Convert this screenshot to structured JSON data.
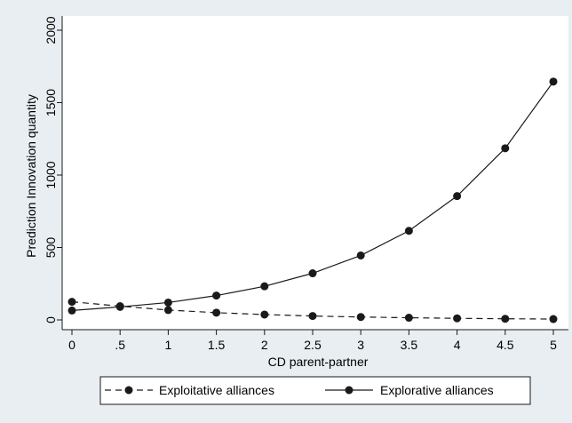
{
  "chart_data": {
    "type": "line",
    "xlabel": "CD parent-partner",
    "ylabel": "Prediction Innovation quantity",
    "x": [
      0,
      0.5,
      1,
      1.5,
      2,
      2.5,
      3,
      3.5,
      4,
      4.5,
      5
    ],
    "x_tick_labels": [
      "0",
      ".5",
      "1",
      "1.5",
      "2",
      "2.5",
      "3",
      "3.5",
      "4",
      "4.5",
      "5"
    ],
    "xlim": [
      0,
      5
    ],
    "y_ticks": [
      0,
      500,
      1000,
      1500,
      2000
    ],
    "y_tick_labels": [
      "0",
      "500",
      "1000",
      "1500",
      "2000"
    ],
    "ylim": [
      0,
      2000
    ],
    "grid": false,
    "legend_position": "bottom",
    "series": [
      {
        "name": "Exploitative alliances",
        "line_style": "dashed",
        "marker": "filled-circle",
        "color": "#1a1a1a",
        "values": [
          125,
          95,
          68,
          50,
          37,
          27,
          20,
          15,
          11,
          8,
          6
        ]
      },
      {
        "name": "Explorative alliances",
        "line_style": "solid",
        "marker": "filled-circle",
        "color": "#1a1a1a",
        "values": [
          65,
          90,
          120,
          168,
          232,
          322,
          445,
          615,
          855,
          1185,
          1645
        ]
      }
    ]
  },
  "colors": {
    "background": "#e8eef1",
    "plot_area": "#ffffff",
    "ink": "#1a1a1a"
  }
}
